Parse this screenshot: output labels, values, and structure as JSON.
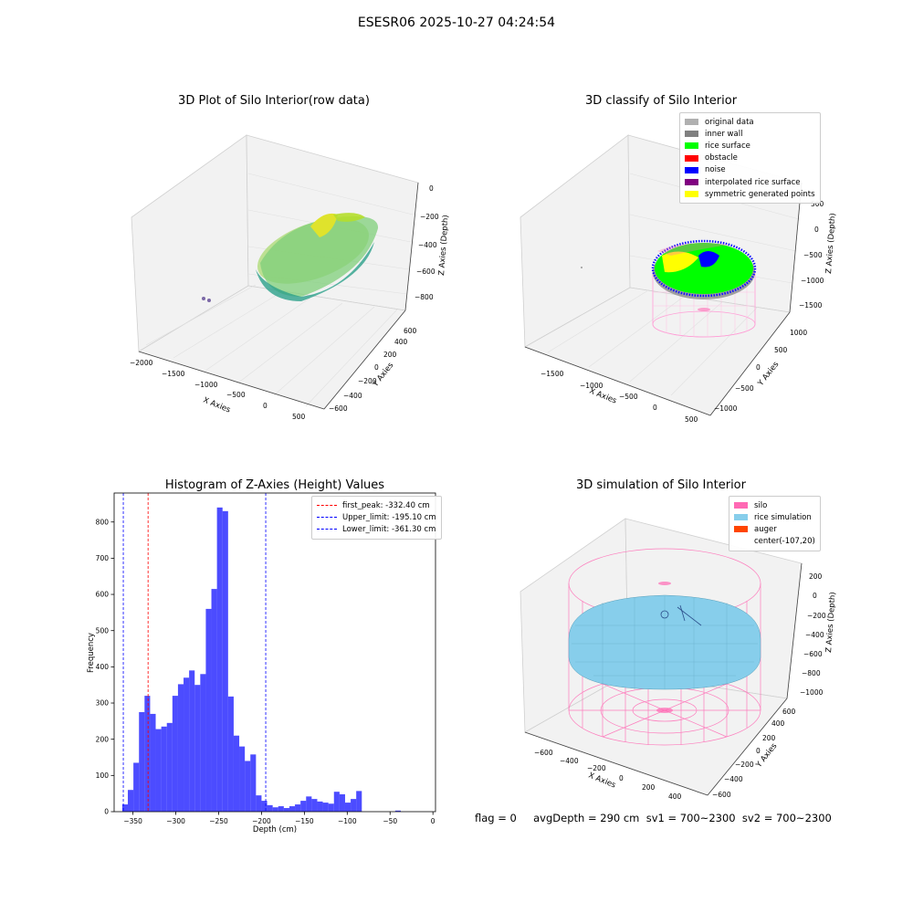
{
  "figure": {
    "suptitle": "ESESR06 2025-10-27 04:24:54",
    "status_line": "flag = 0     avgDepth = 290 cm  sv1 = 700~2300  sv2 = 700~2300"
  },
  "panel_raw": {
    "title": "3D Plot of Silo Interior(row data)",
    "xlabel": "X Axies",
    "ylabel": "Y Axies",
    "zlabel": "Z Axies (Depth)",
    "xticks": [
      "−2000",
      "−1500",
      "−1000",
      "−500",
      "0",
      "500"
    ],
    "yticks": [
      "−600",
      "−400",
      "−200",
      "0",
      "200",
      "400",
      "600"
    ],
    "zticks": [
      "0",
      "−200",
      "−400",
      "−600",
      "−800"
    ]
  },
  "panel_classify": {
    "title": "3D classify of Silo Interior",
    "xlabel": "X Axies",
    "ylabel": "Y Axies",
    "zlabel": "Z Axies (Depth)",
    "xticks": [
      "−1500",
      "−1000",
      "−500",
      "0",
      "500"
    ],
    "yticks": [
      "−1000",
      "−500",
      "0",
      "500",
      "1000"
    ],
    "zticks": [
      "500",
      "0",
      "−500",
      "−1000",
      "−1500"
    ],
    "legend": [
      {
        "label": "original data",
        "color": "#b0b0b0"
      },
      {
        "label": "inner wall",
        "color": "#808080"
      },
      {
        "label": "rice surface",
        "color": "#00ff00"
      },
      {
        "label": "obstacle",
        "color": "#ff0000"
      },
      {
        "label": "noise",
        "color": "#0000ff"
      },
      {
        "label": "interpolated rice surface",
        "color": "#800080"
      },
      {
        "label": "symmetric generated points",
        "color": "#ffff00"
      }
    ]
  },
  "panel_sim": {
    "title": "3D simulation of Silo Interior",
    "xlabel": "X Axies",
    "ylabel": "Y Axies",
    "zlabel": "Z Axies (Depth)",
    "xticks": [
      "−600",
      "−400",
      "−200",
      "0",
      "200",
      "400"
    ],
    "yticks": [
      "−600",
      "−400",
      "−200",
      "0",
      "200",
      "400",
      "600"
    ],
    "zticks": [
      "200",
      "0",
      "−200",
      "−400",
      "−600",
      "−800",
      "−1000"
    ],
    "legend": [
      {
        "label": "silo",
        "color": "#ff69b4"
      },
      {
        "label": "rice simulation",
        "color": "#87ceeb"
      },
      {
        "label": "auger",
        "color": "#ff4500"
      },
      {
        "label": "center(-107,20)",
        "color": ""
      }
    ]
  },
  "chart_data": {
    "type": "bar",
    "title": "Histogram of Z-Axies (Height) Values",
    "xlabel": "Depth (cm)",
    "ylabel": "Frequency",
    "xlim": [
      -372,
      3
    ],
    "ylim": [
      0,
      880
    ],
    "xticks": [
      -350,
      -300,
      -250,
      -200,
      -150,
      -100,
      -50,
      0
    ],
    "xtick_labels": [
      "−350",
      "−300",
      "−250",
      "−200",
      "−150",
      "−100",
      "−50",
      "0"
    ],
    "yticks": [
      0,
      100,
      200,
      300,
      400,
      500,
      600,
      700,
      800
    ],
    "bar_color": "#0000ff",
    "bin_start": -362.5,
    "bin_width": 6.5,
    "values": [
      20,
      60,
      135,
      275,
      320,
      270,
      228,
      235,
      245,
      320,
      352,
      370,
      390,
      350,
      380,
      560,
      615,
      840,
      830,
      318,
      210,
      180,
      140,
      158,
      45,
      30,
      18,
      12,
      15,
      10,
      15,
      20,
      30,
      42,
      35,
      28,
      25,
      22,
      55,
      48,
      25,
      35,
      57,
      0,
      0,
      0,
      0,
      0,
      0,
      3,
      0
    ],
    "vlines": [
      {
        "x": -332.4,
        "color": "#ff0000"
      },
      {
        "x": -195.1,
        "color": "#0000ff"
      },
      {
        "x": -361.3,
        "color": "#0000ff"
      }
    ],
    "legend": [
      {
        "label": "first_peak: -332.40 cm",
        "color": "#ff0000"
      },
      {
        "label": "Upper_limit: -195.10 cm",
        "color": "#0000ff"
      },
      {
        "label": "Lower_limit: -361.30 cm",
        "color": "#0000ff"
      }
    ]
  }
}
